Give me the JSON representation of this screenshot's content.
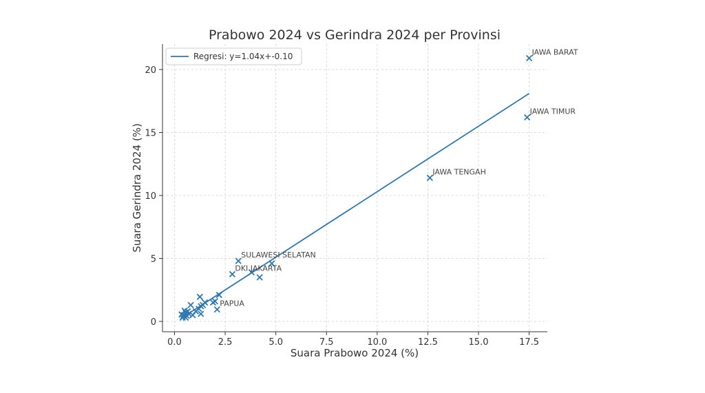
{
  "chart_data": {
    "type": "scatter",
    "title": "Prabowo 2024 vs Gerindra 2024 per Provinsi",
    "xlabel": "Suara Prabowo 2024 (%)",
    "ylabel": "Suara Gerindra 2024 (%)",
    "xlim": [
      -0.8,
      18.3
    ],
    "ylim": [
      -0.8,
      21.9
    ],
    "xticks": [
      0.0,
      2.5,
      5.0,
      7.5,
      10.0,
      12.5,
      15.0,
      17.5
    ],
    "xtick_labels": [
      "0.0",
      "2.5",
      "5.0",
      "7.5",
      "10.0",
      "12.5",
      "15.0",
      "17.5"
    ],
    "yticks": [
      0,
      5,
      10,
      15,
      20
    ],
    "ytick_labels": [
      "0",
      "5",
      "10",
      "15",
      "20"
    ],
    "grid": true,
    "legend_position": "top-left",
    "color": "#2f78b1",
    "marker": "x",
    "points": [
      {
        "x": 17.5,
        "y": 20.9,
        "label": "JAWA BARAT"
      },
      {
        "x": 17.4,
        "y": 16.2,
        "label": "JAWA TIMUR"
      },
      {
        "x": 12.6,
        "y": 11.4,
        "label": "JAWA TENGAH"
      },
      {
        "x": 3.15,
        "y": 4.8,
        "label": "SULAWESI SELATAN"
      },
      {
        "x": 2.85,
        "y": 3.75,
        "label": "DKI JAKARTA"
      },
      {
        "x": 2.1,
        "y": 0.95,
        "label": "PAPUA"
      },
      {
        "x": 4.8,
        "y": 4.6,
        "label": ""
      },
      {
        "x": 3.8,
        "y": 3.9,
        "label": ""
      },
      {
        "x": 4.2,
        "y": 3.5,
        "label": ""
      },
      {
        "x": 2.2,
        "y": 2.1,
        "label": ""
      },
      {
        "x": 2.0,
        "y": 1.6,
        "label": ""
      },
      {
        "x": 1.9,
        "y": 1.5,
        "label": ""
      },
      {
        "x": 1.5,
        "y": 1.5,
        "label": ""
      },
      {
        "x": 1.4,
        "y": 1.3,
        "label": ""
      },
      {
        "x": 1.25,
        "y": 1.95,
        "label": ""
      },
      {
        "x": 1.3,
        "y": 1.2,
        "label": ""
      },
      {
        "x": 1.2,
        "y": 1.0,
        "label": ""
      },
      {
        "x": 1.3,
        "y": 0.6,
        "label": ""
      },
      {
        "x": 1.05,
        "y": 0.8,
        "label": ""
      },
      {
        "x": 0.8,
        "y": 1.3,
        "label": ""
      },
      {
        "x": 0.9,
        "y": 0.5,
        "label": ""
      },
      {
        "x": 0.65,
        "y": 0.8,
        "label": ""
      },
      {
        "x": 0.7,
        "y": 0.6,
        "label": ""
      },
      {
        "x": 0.55,
        "y": 0.7,
        "label": ""
      },
      {
        "x": 0.5,
        "y": 0.85,
        "label": ""
      },
      {
        "x": 0.45,
        "y": 0.5,
        "label": ""
      },
      {
        "x": 0.4,
        "y": 0.3,
        "label": ""
      },
      {
        "x": 0.55,
        "y": 0.3,
        "label": ""
      },
      {
        "x": 0.35,
        "y": 0.55,
        "label": ""
      },
      {
        "x": 0.6,
        "y": 0.45,
        "label": ""
      }
    ],
    "regression": {
      "label": "Regresi: y=1.04x+-0.10",
      "slope": 1.04,
      "intercept": -0.1,
      "x_range": [
        0.3,
        17.5
      ]
    }
  }
}
